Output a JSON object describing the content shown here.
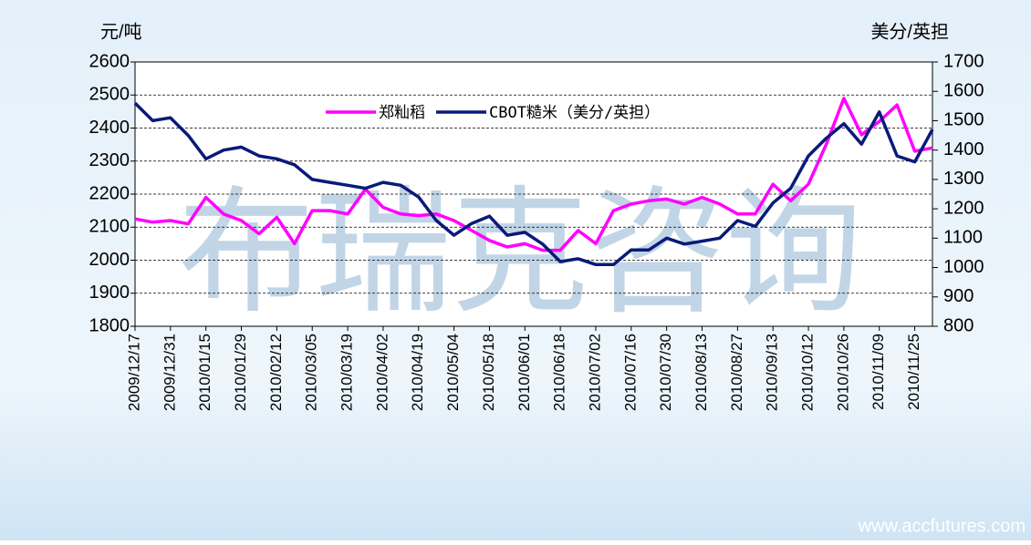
{
  "chart_data": {
    "type": "line",
    "y_label": "元/吨",
    "y2_label": "美分/英担",
    "watermark": "布瑞克咨询",
    "source": "www.accfutures.com",
    "categories": [
      "2009/12/17",
      null,
      "2009/12/31",
      null,
      "2010/01/15",
      null,
      "2010/01/29",
      null,
      "2010/02/12",
      null,
      "2010/03/05",
      null,
      "2010/03/19",
      null,
      "2010/04/02",
      null,
      "2010/04/19",
      null,
      "2010/05/04",
      null,
      "2010/05/18",
      null,
      "2010/06/01",
      null,
      "2010/06/18",
      null,
      "2010/07/02",
      null,
      "2010/07/16",
      null,
      "2010/07/30",
      null,
      "2010/08/13",
      null,
      "2010/08/27",
      null,
      "2010/09/13",
      null,
      "2010/10/12",
      null,
      "2010/10/26",
      null,
      "2010/11/09",
      null,
      "2010/11/25",
      null
    ],
    "series": [
      {
        "name": "郑籼稻",
        "color": "#ff00ff",
        "axis": "y",
        "values": [
          2125,
          2115,
          2120,
          2110,
          2190,
          2140,
          2120,
          2080,
          2130,
          2050,
          2150,
          2150,
          2140,
          2215,
          2160,
          2140,
          2135,
          2140,
          2120,
          2090,
          2060,
          2040,
          2050,
          2030,
          2030,
          2090,
          2050,
          2150,
          2170,
          2180,
          2185,
          2170,
          2190,
          2170,
          2140,
          2140,
          2230,
          2180,
          2230,
          2350,
          2490,
          2380,
          2420,
          2470,
          2330,
          2340
        ]
      },
      {
        "name": "CBOT糙米（美分/英担）",
        "color": "#0a1a7a",
        "axis": "y2",
        "values": [
          1560,
          1500,
          1510,
          1450,
          1370,
          1400,
          1410,
          1380,
          1370,
          1350,
          1300,
          1290,
          1280,
          1270,
          1290,
          1280,
          1240,
          1160,
          1110,
          1150,
          1175,
          1110,
          1120,
          1080,
          1020,
          1030,
          1010,
          1010,
          1060,
          1060,
          1100,
          1080,
          1090,
          1100,
          1160,
          1140,
          1220,
          1270,
          1380,
          1440,
          1490,
          1420,
          1530,
          1380,
          1360,
          1470
        ]
      }
    ],
    "ylim": [
      1800,
      2600
    ],
    "yticks": [
      1800,
      1900,
      2000,
      2100,
      2200,
      2300,
      2400,
      2500,
      2600
    ],
    "y2lim": [
      800,
      1700
    ],
    "y2ticks": [
      800,
      900,
      1000,
      1100,
      1200,
      1300,
      1400,
      1500,
      1600,
      1700
    ],
    "grid": true,
    "legend": "top"
  }
}
